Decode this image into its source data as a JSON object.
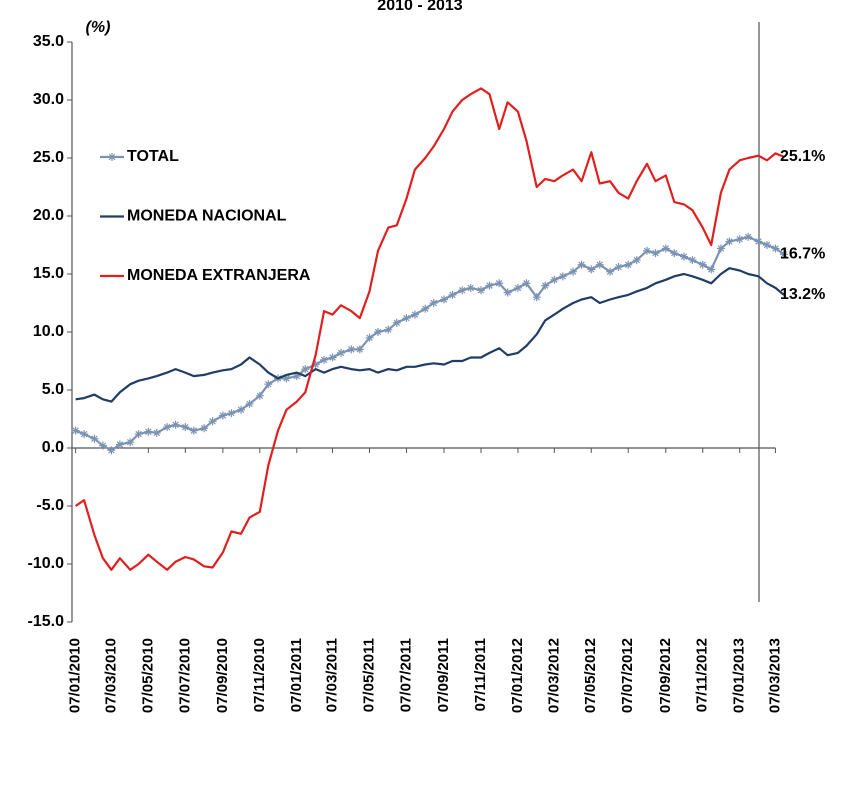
{
  "chart_data": {
    "type": "line",
    "title": "2010 - 2013",
    "y_label": "(%)",
    "x": [
      "07/01/2010",
      "21/01/2010",
      "07/02/2010",
      "21/02/2010",
      "07/03/2010",
      "21/03/2010",
      "07/04/2010",
      "21/04/2010",
      "07/05/2010",
      "21/05/2010",
      "07/06/2010",
      "21/06/2010",
      "07/07/2010",
      "21/07/2010",
      "07/08/2010",
      "21/08/2010",
      "07/09/2010",
      "21/09/2010",
      "07/10/2010",
      "21/10/2010",
      "07/11/2010",
      "21/11/2010",
      "07/12/2010",
      "21/12/2010",
      "07/01/2011",
      "21/01/2011",
      "07/02/2011",
      "21/02/2011",
      "07/03/2011",
      "21/03/2011",
      "07/04/2011",
      "21/04/2011",
      "07/05/2011",
      "21/05/2011",
      "07/06/2011",
      "21/06/2011",
      "07/07/2011",
      "21/07/2011",
      "07/08/2011",
      "21/08/2011",
      "07/09/2011",
      "21/09/2011",
      "07/10/2011",
      "21/10/2011",
      "07/11/2011",
      "21/11/2011",
      "07/12/2011",
      "21/12/2011",
      "07/01/2012",
      "21/01/2012",
      "07/02/2012",
      "21/02/2012",
      "07/03/2012",
      "21/03/2012",
      "07/04/2012",
      "21/04/2012",
      "07/05/2012",
      "21/05/2012",
      "07/06/2012",
      "21/06/2012",
      "07/07/2012",
      "21/07/2012",
      "07/08/2012",
      "21/08/2012",
      "07/09/2012",
      "21/09/2012",
      "07/10/2012",
      "21/10/2012",
      "07/11/2012",
      "21/11/2012",
      "07/12/2012",
      "21/12/2012",
      "07/01/2013",
      "21/01/2013",
      "07/02/2013",
      "21/02/2013",
      "07/03/2013",
      "21/03/2013"
    ],
    "series": [
      {
        "name": "TOTAL",
        "color": "#7b93b3",
        "marker": "star",
        "end_label": "16.7%",
        "values": [
          1.5,
          1.2,
          0.8,
          0.2,
          -0.2,
          0.3,
          0.5,
          1.2,
          1.4,
          1.3,
          1.8,
          2,
          1.8,
          1.5,
          1.7,
          2.3,
          2.8,
          3,
          3.3,
          3.8,
          4.5,
          5.5,
          6,
          6,
          6.2,
          6.8,
          7.2,
          7.6,
          7.8,
          8.2,
          8.5,
          8.5,
          9.5,
          10,
          10.2,
          10.8,
          11.2,
          11.5,
          12,
          12.5,
          12.8,
          13.2,
          13.6,
          13.8,
          13.6,
          14,
          14.2,
          13.4,
          13.8,
          14.2,
          13,
          14,
          14.5,
          14.8,
          15.2,
          15.8,
          15.4,
          15.8,
          15.2,
          15.6,
          15.8,
          16.2,
          17,
          16.8,
          17.2,
          16.8,
          16.5,
          16.2,
          15.8,
          15.4,
          17.2,
          17.8,
          18,
          18.2,
          17.8,
          17.5,
          17.2,
          16.7
        ]
      },
      {
        "name": "MONEDA NACIONAL",
        "color": "#1f3d66",
        "end_label": "13.2%",
        "values": [
          4.2,
          4.3,
          4.6,
          4.2,
          4,
          4.8,
          5.5,
          5.8,
          6,
          6.2,
          6.5,
          6.8,
          6.5,
          6.2,
          6.3,
          6.5,
          6.7,
          6.8,
          7.2,
          7.8,
          7.2,
          6.5,
          6,
          6.3,
          6.5,
          6.2,
          6.8,
          6.5,
          6.8,
          7,
          6.8,
          6.7,
          6.8,
          6.5,
          6.8,
          6.7,
          7,
          7,
          7.2,
          7.3,
          7.2,
          7.5,
          7.5,
          7.8,
          7.8,
          8.2,
          8.6,
          8,
          8.2,
          8.8,
          9.8,
          11,
          11.5,
          12,
          12.5,
          12.8,
          13,
          12.5,
          12.8,
          13,
          13.2,
          13.5,
          13.8,
          14.2,
          14.5,
          14.8,
          15,
          14.8,
          14.5,
          14.2,
          15,
          15.5,
          15.3,
          15,
          14.8,
          14.2,
          13.8,
          13.2
        ]
      },
      {
        "name": "MONEDA EXTRANJERA",
        "color": "#e0201e",
        "end_label": "25.1%",
        "values": [
          -5,
          -4.5,
          -7.5,
          -9.5,
          -10.5,
          -9.5,
          -10.5,
          -10,
          -9.2,
          -9.8,
          -10.5,
          -9.8,
          -9.4,
          -9.6,
          -10.2,
          -10.3,
          -9,
          -7.2,
          -7.4,
          -6,
          -5.5,
          -1.5,
          1.5,
          3.3,
          4,
          4.8,
          8,
          11.8,
          11.5,
          12.3,
          11.8,
          11.2,
          13.5,
          17,
          19,
          19.2,
          21.5,
          24,
          25,
          26,
          27.5,
          29,
          30,
          30.5,
          31,
          30.5,
          27.5,
          29.8,
          29,
          26.5,
          22.5,
          23.2,
          23,
          23.5,
          24,
          23,
          25.5,
          22.8,
          23,
          22,
          21.5,
          23,
          24.5,
          23,
          23.5,
          21.2,
          21,
          20.5,
          19,
          17.5,
          22,
          24,
          24.8,
          25,
          25.2,
          24.8,
          25.4,
          25.1
        ]
      }
    ],
    "xlim": [
      "01/01/2010",
      "31/03/2013"
    ],
    "xticks": [
      "07/01/2010",
      "07/03/2010",
      "07/05/2010",
      "07/07/2010",
      "07/09/2010",
      "07/11/2010",
      "07/01/2011",
      "07/03/2011",
      "07/05/2011",
      "07/07/2011",
      "07/09/2011",
      "07/11/2011",
      "07/01/2012",
      "07/03/2012",
      "07/05/2012",
      "07/07/2012",
      "07/09/2012",
      "07/11/2012",
      "07/01/2013",
      "07/03/2013"
    ],
    "ylim": [
      -15,
      35
    ],
    "yticks": [
      {
        "value": -15,
        "label": "-15.0"
      },
      {
        "value": -10,
        "label": "-10.0"
      },
      {
        "value": -5,
        "label": "-5.0"
      },
      {
        "value": 0,
        "label": "0.0"
      },
      {
        "value": 5,
        "label": "5.0"
      },
      {
        "value": 10,
        "label": "10.0"
      },
      {
        "value": 15,
        "label": "15.0"
      },
      {
        "value": 20,
        "label": "20.0"
      },
      {
        "value": 25,
        "label": "25.0"
      },
      {
        "value": 30,
        "label": "30.0"
      },
      {
        "value": 35,
        "label": "35.0"
      }
    ],
    "grid": false,
    "legend": "upper left"
  }
}
